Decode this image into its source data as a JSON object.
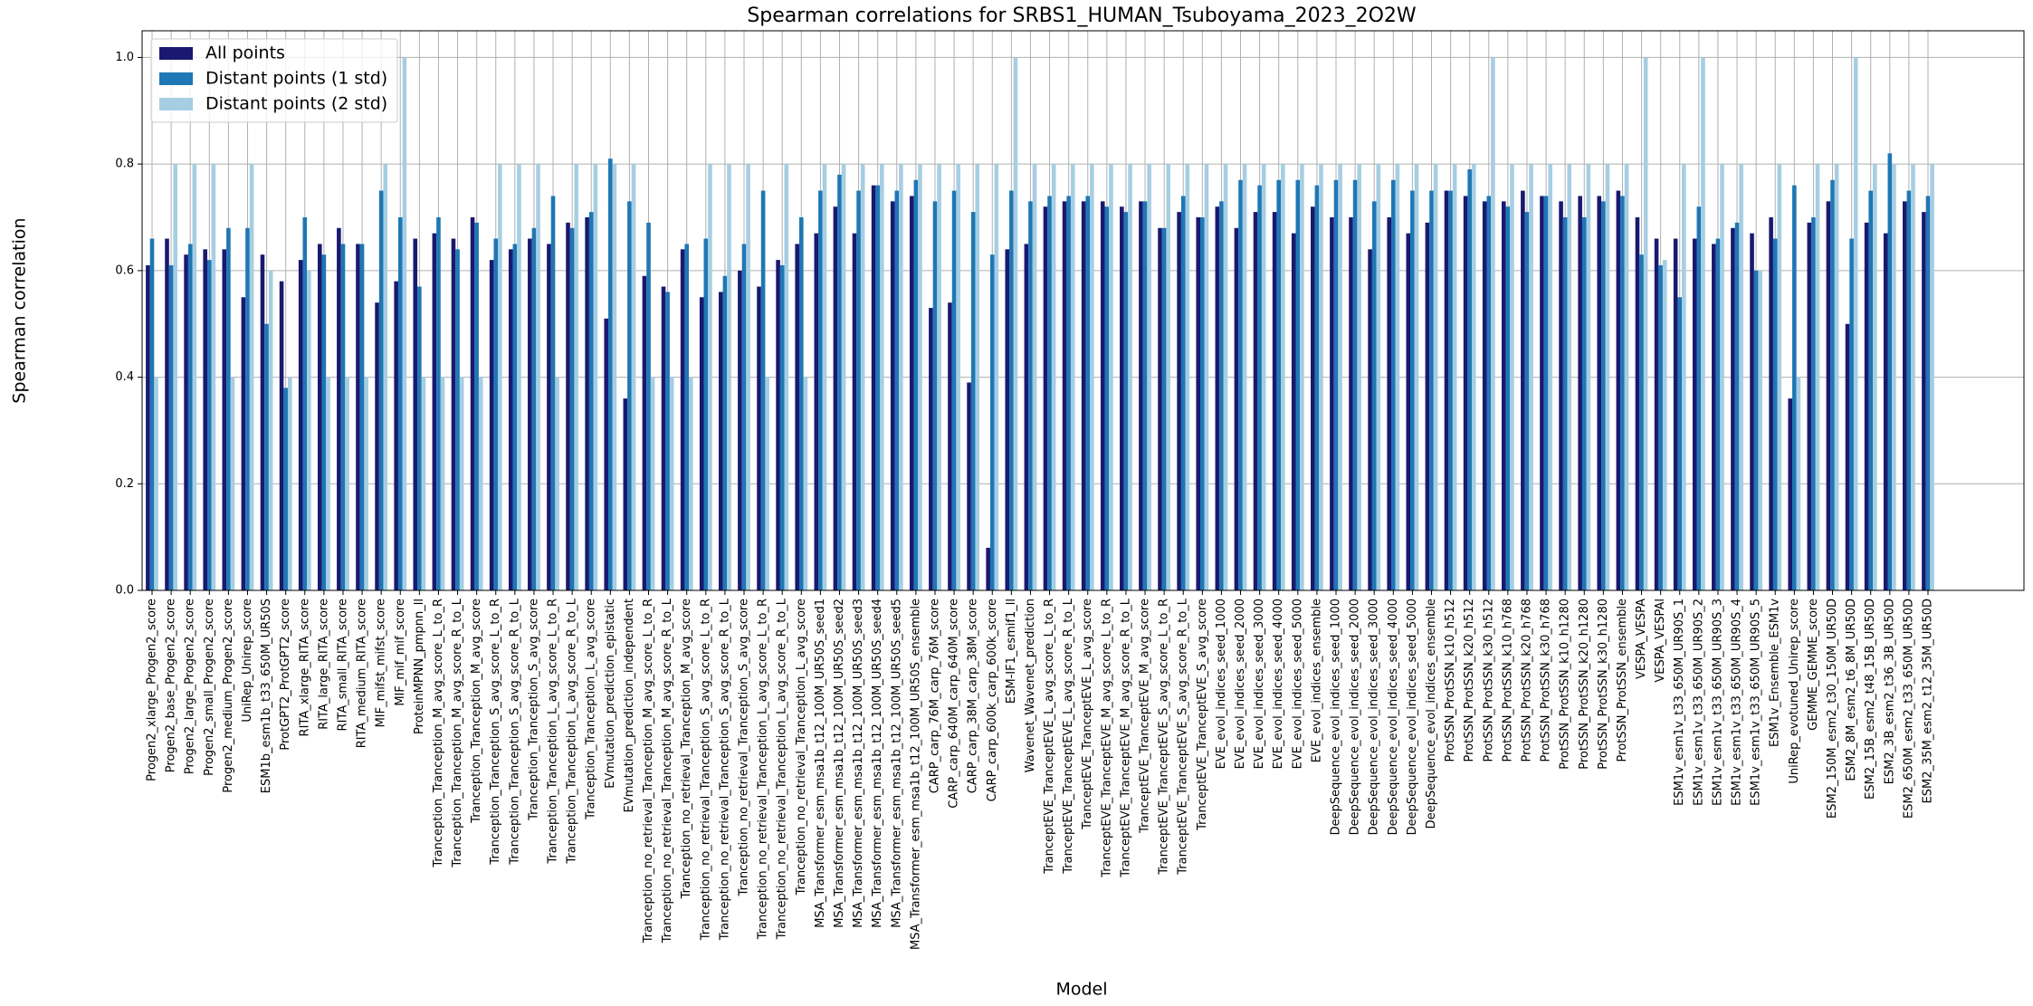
{
  "chart_data": {
    "type": "bar",
    "title": "Spearman correlations for SRBS1_HUMAN_Tsuboyama_2023_2O2W",
    "x_label": "Model",
    "y_label": "Spearman correlation",
    "categories": [
      "Progen2_xlarge_Progen2_score",
      "Progen2_base_Progen2_score",
      "Progen2_large_Progen2_score",
      "Progen2_small_Progen2_score",
      "Progen2_medium_Progen2_score",
      "UniRep_Unirep_score",
      "ESM1b_esm1b_t33_650M_UR50S",
      "ProtGPT2_ProtGPT2_score",
      "RITA_xlarge_RITA_score",
      "RITA_large_RITA_score",
      "RITA_small_RITA_score",
      "RITA_medium_RITA_score",
      "MIF_mifst_mifst_score",
      "MIF_mif_mif_score",
      "ProteinMPNN_pmpnn_ll",
      "Tranception_Tranception_M_avg_score_L_to_R",
      "Tranception_Tranception_M_avg_score_R_to_L",
      "Tranception_Tranception_M_avg_score",
      "Tranception_Tranception_S_avg_score_L_to_R",
      "Tranception_Tranception_S_avg_score_R_to_L",
      "Tranception_Tranception_S_avg_score",
      "Tranception_Tranception_L_avg_score_L_to_R",
      "Tranception_Tranception_L_avg_score_R_to_L",
      "Tranception_Tranception_L_avg_score",
      "EVmutation_prediction_epistatic",
      "EVmutation_prediction_independent",
      "Tranception_no_retrieval_Tranception_M_avg_score_L_to_R",
      "Tranception_no_retrieval_Tranception_M_avg_score_R_to_L",
      "Tranception_no_retrieval_Tranception_M_avg_score",
      "Tranception_no_retrieval_Tranception_S_avg_score_L_to_R",
      "Tranception_no_retrieval_Tranception_S_avg_score_R_to_L",
      "Tranception_no_retrieval_Tranception_S_avg_score",
      "Tranception_no_retrieval_Tranception_L_avg_score_L_to_R",
      "Tranception_no_retrieval_Tranception_L_avg_score_R_to_L",
      "Tranception_no_retrieval_Tranception_L_avg_score",
      "MSA_Transformer_esm_msa1b_t12_100M_UR50S_seed1",
      "MSA_Transformer_esm_msa1b_t12_100M_UR50S_seed2",
      "MSA_Transformer_esm_msa1b_t12_100M_UR50S_seed3",
      "MSA_Transformer_esm_msa1b_t12_100M_UR50S_seed4",
      "MSA_Transformer_esm_msa1b_t12_100M_UR50S_seed5",
      "MSA_Transformer_esm_msa1b_t12_100M_UR50S_ensemble",
      "CARP_carp_76M_carp_76M_score",
      "CARP_carp_640M_carp_640M_score",
      "CARP_carp_38M_carp_38M_score",
      "CARP_carp_600k_carp_600k_score",
      "ESM-IF1_esmif1_ll",
      "Wavenet_Wavenet_prediction",
      "TranceptEVE_TranceptEVE_L_avg_score_L_to_R",
      "TranceptEVE_TranceptEVE_L_avg_score_R_to_L",
      "TranceptEVE_TranceptEVE_L_avg_score",
      "TranceptEVE_TranceptEVE_M_avg_score_L_to_R",
      "TranceptEVE_TranceptEVE_M_avg_score_R_to_L",
      "TranceptEVE_TranceptEVE_M_avg_score",
      "TranceptEVE_TranceptEVE_S_avg_score_L_to_R",
      "TranceptEVE_TranceptEVE_S_avg_score_R_to_L",
      "TranceptEVE_TranceptEVE_S_avg_score",
      "EVE_evol_indices_seed_1000",
      "EVE_evol_indices_seed_2000",
      "EVE_evol_indices_seed_3000",
      "EVE_evol_indices_seed_4000",
      "EVE_evol_indices_seed_5000",
      "EVE_evol_indices_ensemble",
      "DeepSequence_evol_indices_seed_1000",
      "DeepSequence_evol_indices_seed_2000",
      "DeepSequence_evol_indices_seed_3000",
      "DeepSequence_evol_indices_seed_4000",
      "DeepSequence_evol_indices_seed_5000",
      "DeepSequence_evol_indices_ensemble",
      "ProtSSN_ProtSSN_k10_h512",
      "ProtSSN_ProtSSN_k20_h512",
      "ProtSSN_ProtSSN_k30_h512",
      "ProtSSN_ProtSSN_k10_h768",
      "ProtSSN_ProtSSN_k20_h768",
      "ProtSSN_ProtSSN_k30_h768",
      "ProtSSN_ProtSSN_k10_h1280",
      "ProtSSN_ProtSSN_k20_h1280",
      "ProtSSN_ProtSSN_k30_h1280",
      "ProtSSN_ProtSSN_ensemble",
      "VESPA_VESPA",
      "VESPA_VESPAl",
      "ESM1v_esm1v_t33_650M_UR90S_1",
      "ESM1v_esm1v_t33_650M_UR90S_2",
      "ESM1v_esm1v_t33_650M_UR90S_3",
      "ESM1v_esm1v_t33_650M_UR90S_4",
      "ESM1v_esm1v_t33_650M_UR90S_5",
      "ESM1v_Ensemble_ESM1v",
      "UniRep_evotuned_Unirep_score",
      "GEMME_GEMME_score",
      "ESM2_150M_esm2_t30_150M_UR50D",
      "ESM2_8M_esm2_t6_8M_UR50D",
      "ESM2_15B_esm2_t48_15B_UR50D",
      "ESM2_3B_esm2_t36_3B_UR50D",
      "ESM2_650M_esm2_t33_650M_UR50D",
      "ESM2_35M_esm2_t12_35M_UR50D"
    ],
    "series": [
      {
        "name": "All points",
        "color": "#191970",
        "values": [
          0.61,
          0.66,
          0.63,
          0.64,
          0.64,
          0.55,
          0.63,
          0.58,
          0.62,
          0.65,
          0.68,
          0.65,
          0.54,
          0.58,
          0.66,
          0.67,
          0.66,
          0.7,
          0.62,
          0.64,
          0.66,
          0.65,
          0.69,
          0.7,
          0.51,
          0.36,
          0.59,
          0.57,
          0.64,
          0.55,
          0.56,
          0.6,
          0.57,
          0.62,
          0.65,
          0.67,
          0.72,
          0.67,
          0.76,
          0.73,
          0.74,
          0.53,
          0.54,
          0.39,
          0.08,
          0.64,
          0.65,
          0.72,
          0.73,
          0.73,
          0.73,
          0.72,
          0.73,
          0.68,
          0.71,
          0.7,
          0.72,
          0.68,
          0.71,
          0.71,
          0.67,
          0.72,
          0.7,
          0.7,
          0.64,
          0.7,
          0.67,
          0.69,
          0.75,
          0.74,
          0.73,
          0.73,
          0.75,
          0.74,
          0.73,
          0.74,
          0.74,
          0.75,
          0.7,
          0.66,
          0.66,
          0.66,
          0.65,
          0.68,
          0.67,
          0.7,
          0.36,
          0.69,
          0.73,
          0.5,
          0.69,
          0.67,
          0.73,
          0.71
        ]
      },
      {
        "name": "Distant points (1 std)",
        "color": "#1f77b4",
        "values": [
          0.66,
          0.61,
          0.65,
          0.62,
          0.68,
          0.68,
          0.5,
          0.38,
          0.7,
          0.63,
          0.65,
          0.65,
          0.75,
          0.7,
          0.57,
          0.7,
          0.64,
          0.69,
          0.66,
          0.65,
          0.68,
          0.74,
          0.68,
          0.71,
          0.81,
          0.73,
          0.69,
          0.56,
          0.65,
          0.66,
          0.59,
          0.65,
          0.75,
          0.61,
          0.7,
          0.75,
          0.78,
          0.75,
          0.76,
          0.75,
          0.77,
          0.73,
          0.75,
          0.71,
          0.63,
          0.75,
          0.73,
          0.74,
          0.74,
          0.74,
          0.72,
          0.71,
          0.73,
          0.68,
          0.74,
          0.7,
          0.73,
          0.77,
          0.76,
          0.77,
          0.77,
          0.76,
          0.77,
          0.77,
          0.73,
          0.77,
          0.75,
          0.75,
          0.75,
          0.79,
          0.74,
          0.72,
          0.71,
          0.74,
          0.7,
          0.7,
          0.73,
          0.74,
          0.63,
          0.61,
          0.55,
          0.72,
          0.66,
          0.69,
          0.6,
          0.66,
          0.76,
          0.7,
          0.77,
          0.66,
          0.75,
          0.82,
          0.75,
          0.74
        ]
      },
      {
        "name": "Distant points (2 std)",
        "color": "#a6cee3",
        "values": [
          0.4,
          0.8,
          0.8,
          0.8,
          0.4,
          0.8,
          0.6,
          0.4,
          0.6,
          0.4,
          0.4,
          0.4,
          0.8,
          1.0,
          0.4,
          0.4,
          0.4,
          0.4,
          0.8,
          0.8,
          0.8,
          0.4,
          0.8,
          0.8,
          0.8,
          0.8,
          0.4,
          0.4,
          0.4,
          0.8,
          0.8,
          0.8,
          0.4,
          0.8,
          0.4,
          0.8,
          0.8,
          0.8,
          0.8,
          0.8,
          0.8,
          0.8,
          0.8,
          0.8,
          0.8,
          1.0,
          0.8,
          0.8,
          0.8,
          0.8,
          0.8,
          0.8,
          0.8,
          0.8,
          0.8,
          0.8,
          0.8,
          0.8,
          0.8,
          0.8,
          0.8,
          0.8,
          0.8,
          0.8,
          0.8,
          0.8,
          0.8,
          0.8,
          0.8,
          0.8,
          1.0,
          0.8,
          0.8,
          0.8,
          0.8,
          0.8,
          0.8,
          0.8,
          1.0,
          0.62,
          0.8,
          1.0,
          0.8,
          0.8,
          0.6,
          0.8,
          0.4,
          0.8,
          0.8,
          1.0,
          0.8,
          0.8,
          0.8,
          0.8
        ]
      }
    ],
    "ylim": [
      0,
      1.05
    ],
    "yticks": [
      {
        "value": 0,
        "label": "0.0"
      },
      0.2,
      0.4,
      0.6,
      0.8,
      {
        "value": 1,
        "label": "1.0"
      }
    ],
    "grid": true,
    "legend": "upper left"
  }
}
